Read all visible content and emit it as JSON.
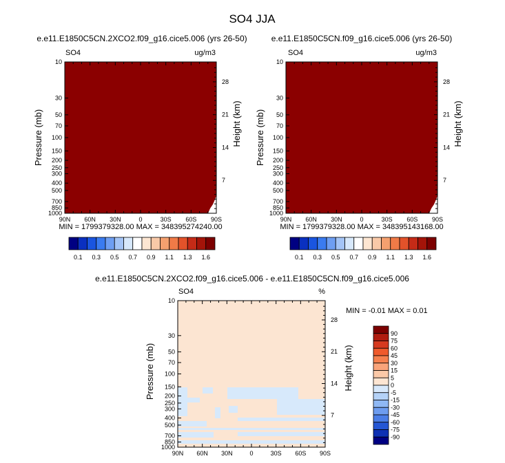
{
  "page_title": "SO4 JJA",
  "chart_data": [
    {
      "type": "heatmap",
      "title": "e.e11.E1850C5CN.2XCO2.f09_g16.cice5.006 (yrs 26-50)",
      "left_label": "SO4",
      "right_label": "ug/m3",
      "ylabel": "Pressure (mb)",
      "ylabel_right": "Height (km)",
      "x_ticks": [
        "90N",
        "60N",
        "30N",
        "0",
        "30S",
        "60S",
        "90S"
      ],
      "y_ticks": [
        "10",
        "30",
        "50",
        "70",
        "100",
        "150",
        "200",
        "250",
        "300",
        "400",
        "500",
        "700",
        "850",
        "1000"
      ],
      "y_ticks_right": [
        "28",
        "21",
        "14",
        "7"
      ],
      "stats": "MIN = 1799379328.00   MAX = 348395274240.00",
      "fill_color": "#8b0000",
      "white_corner": true
    },
    {
      "type": "heatmap",
      "title": "e.e11.E1850C5CN.f09_g16.cice5.006 (yrs 26-50)",
      "left_label": "SO4",
      "right_label": "ug/m3",
      "ylabel": "Pressure (mb)",
      "ylabel_right": "Height (km)",
      "x_ticks": [
        "90N",
        "60N",
        "30N",
        "0",
        "30S",
        "60S",
        "90S"
      ],
      "y_ticks": [
        "10",
        "30",
        "50",
        "70",
        "100",
        "150",
        "200",
        "250",
        "300",
        "400",
        "500",
        "700",
        "850",
        "1000"
      ],
      "y_ticks_right": [
        "28",
        "21",
        "14",
        "7"
      ],
      "stats": "MIN = 1799379328.00   MAX = 348395143168.00",
      "fill_color": "#8b0000",
      "white_corner": true
    },
    {
      "type": "heatmap",
      "title": "e.e11.E1850C5CN.2XCO2.f09_g16.cice5.006 - e.e11.E1850C5CN.f09_g16.cice5.006",
      "left_label": "SO4",
      "right_label": "%",
      "ylabel": "Pressure (mb)",
      "ylabel_right": "Height (km)",
      "x_ticks": [
        "90N",
        "60N",
        "30N",
        "0",
        "30S",
        "60S",
        "90S"
      ],
      "y_ticks": [
        "10",
        "30",
        "50",
        "70",
        "100",
        "150",
        "200",
        "250",
        "300",
        "400",
        "500",
        "700",
        "850",
        "1000"
      ],
      "y_ticks_right": [
        "28",
        "21",
        "14",
        "7"
      ],
      "stats": "MIN =  -0.01   MAX =   0.01",
      "fill_color": "#fce5d2",
      "negative_color": "#d7e9fb"
    }
  ],
  "colorbar_top": {
    "labels": [
      "0.1",
      "0.3",
      "0.5",
      "0.7",
      "0.9",
      "1.1",
      "1.3",
      "1.6"
    ],
    "colors": [
      "#000082",
      "#0a30c0",
      "#1a55e0",
      "#3a7bf0",
      "#6e9ef2",
      "#a4c4f6",
      "#d7e8fb",
      "#ffffff",
      "#fde6d2",
      "#f9c9a8",
      "#f5a06f",
      "#f07a47",
      "#e3522a",
      "#c52b17",
      "#a41409",
      "#7c0000"
    ]
  },
  "colorbar_diff": {
    "labels": [
      "90",
      "75",
      "60",
      "45",
      "30",
      "15",
      "5",
      "0",
      "-5",
      "-15",
      "-30",
      "-45",
      "-60",
      "-75",
      "-90"
    ],
    "colors": [
      "#7c0000",
      "#b01c10",
      "#d63a20",
      "#ef5a2c",
      "#f5804e",
      "#f9a47a",
      "#fbc9a8",
      "#fde5d2",
      "#d7e8fb",
      "#b5d2f7",
      "#8fb8f4",
      "#6d9cef",
      "#4a7de6",
      "#2456d4",
      "#0e31b4",
      "#000082"
    ]
  }
}
